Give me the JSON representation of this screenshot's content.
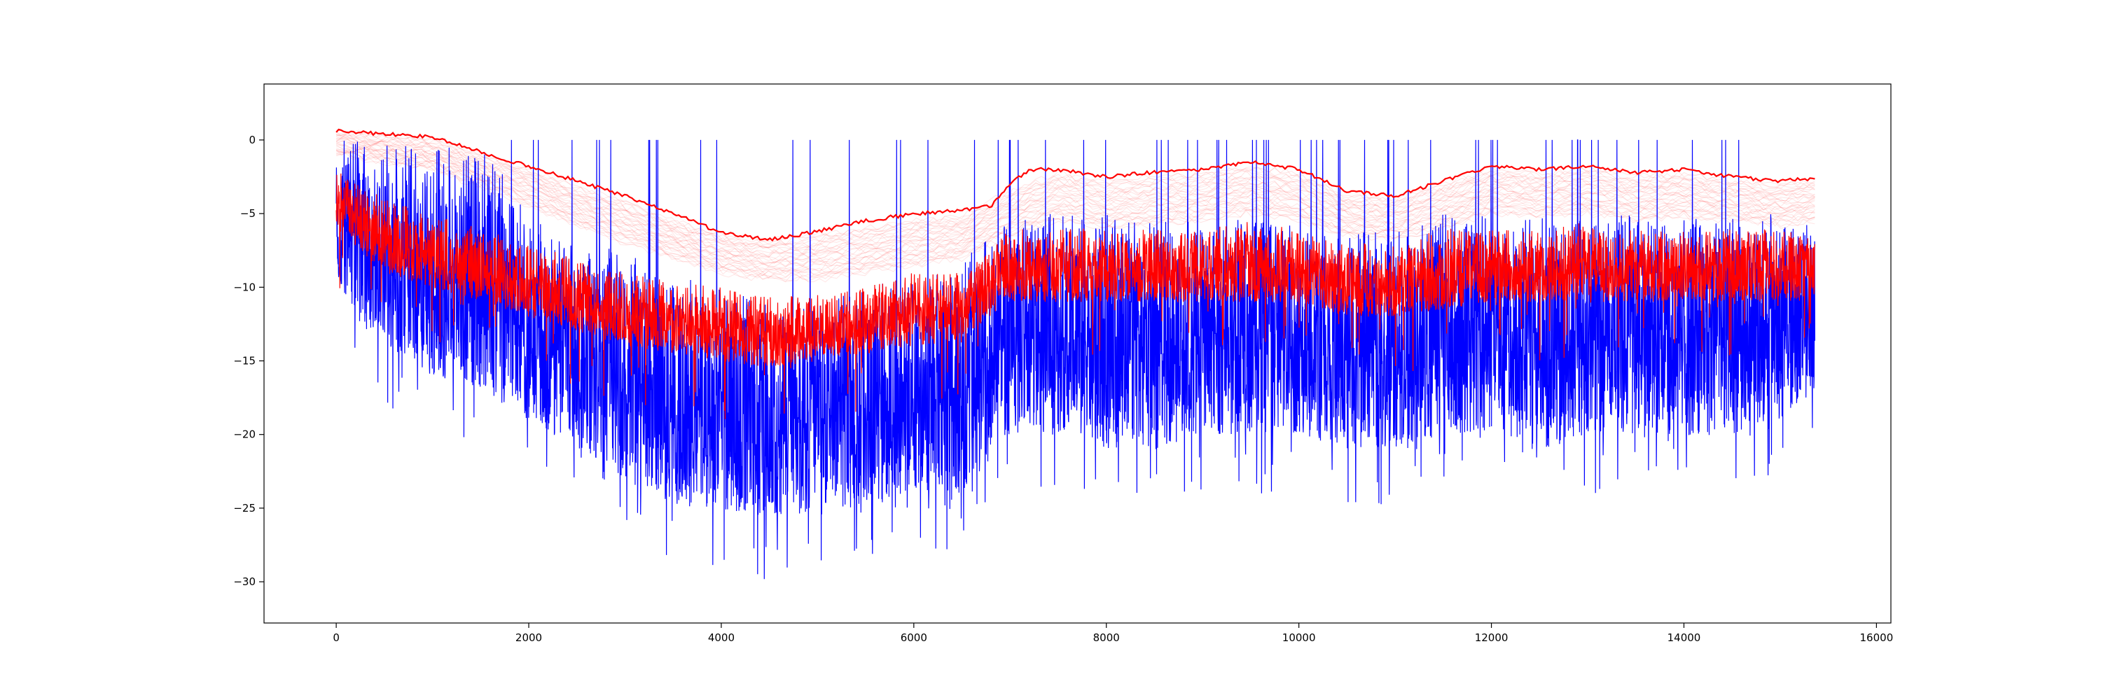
{
  "chart_data": {
    "type": "line",
    "title": "",
    "xlabel": "",
    "ylabel": "",
    "xlim": [
      -750,
      16150
    ],
    "ylim": [
      -32.8,
      3.8
    ],
    "x_ticks": [
      0,
      2000,
      4000,
      6000,
      8000,
      10000,
      12000,
      14000,
      16000
    ],
    "x_tick_labels": [
      "0",
      "2000",
      "4000",
      "6000",
      "8000",
      "10000",
      "12000",
      "14000",
      "16000"
    ],
    "y_ticks": [
      0,
      -5,
      -10,
      -15,
      -20,
      -25,
      -30
    ],
    "y_tick_labels": [
      "0",
      "−5",
      "−10",
      "−15",
      "−20",
      "−25",
      "−30"
    ],
    "grid": false,
    "legend": "none",
    "x_range_of_data": [
      0,
      15360
    ],
    "series": [
      {
        "color": "#0000ff",
        "style": "dense noisy spectrum, clipped at 0",
        "x": [
          0,
          500,
          1000,
          1500,
          2000,
          2500,
          3000,
          3500,
          4000,
          4500,
          5000,
          5500,
          6000,
          6500,
          7000,
          7500,
          8000,
          8500,
          9000,
          9500,
          10000,
          10500,
          11000,
          11500,
          12000,
          12500,
          13000,
          13500,
          14000,
          14500,
          15000,
          15360
        ],
        "upper": [
          0,
          0,
          0,
          0,
          -5,
          -7,
          -7.5,
          -9,
          -10,
          -11,
          -11,
          -10,
          -9,
          -8,
          -5,
          -5,
          -5,
          -5,
          -5,
          -5,
          -6,
          -6,
          -6,
          -5,
          -5,
          -5,
          -5,
          -5,
          -5,
          -5,
          -5,
          -6
        ],
        "lower": [
          -10,
          -14,
          -16,
          -17,
          -19,
          -21,
          -23,
          -25,
          -25,
          -26,
          -25,
          -25,
          -24,
          -24,
          -20,
          -20,
          -21,
          -21,
          -20,
          -20,
          -20,
          -21,
          -21,
          -20,
          -20,
          -21,
          -20,
          -20,
          -20,
          -20,
          -19,
          -17
        ]
      },
      {
        "color": "#ff0000",
        "style": "dense noisy spectrum",
        "x": [
          0,
          500,
          1000,
          1500,
          2000,
          2500,
          3000,
          3500,
          4000,
          4500,
          5000,
          5500,
          6000,
          6500,
          7000,
          7500,
          8000,
          8500,
          9000,
          9500,
          10000,
          10500,
          11000,
          11500,
          12000,
          12500,
          13000,
          13500,
          14000,
          14500,
          15000,
          15360
        ],
        "upper": [
          -2,
          -4,
          -5,
          -6,
          -7,
          -8,
          -9,
          -9.5,
          -10,
          -10.5,
          -10.5,
          -10,
          -9,
          -9,
          -6,
          -6,
          -6,
          -6,
          -6,
          -5.5,
          -6,
          -7,
          -7,
          -6,
          -6,
          -6,
          -5.5,
          -6,
          -6,
          -6,
          -6,
          -6.5
        ],
        "lower": [
          -6,
          -9,
          -10,
          -11,
          -12,
          -13,
          -14,
          -14.5,
          -15,
          -15.5,
          -15,
          -14.5,
          -14,
          -13.5,
          -11,
          -11,
          -11,
          -11,
          -11,
          -11,
          -11,
          -12,
          -12,
          -11.5,
          -11,
          -11,
          -11,
          -11,
          -11,
          -11,
          -11,
          -11
        ]
      },
      {
        "color": "#ff0000",
        "style": "smooth envelope (upper)",
        "x": [
          0,
          1000,
          1500,
          2000,
          2500,
          3000,
          3500,
          4000,
          4500,
          5000,
          5500,
          6000,
          6500,
          6800,
          7000,
          7200,
          7500,
          8000,
          8500,
          9000,
          9500,
          10000,
          10500,
          11000,
          11500,
          12000,
          12500,
          13000,
          13500,
          14000,
          14500,
          15000,
          15360
        ],
        "y": [
          0.6,
          0.2,
          -0.8,
          -1.8,
          -2.8,
          -3.8,
          -5.0,
          -6.3,
          -6.8,
          -6.2,
          -5.5,
          -5.0,
          -4.8,
          -4.5,
          -3.0,
          -2.0,
          -2.0,
          -2.5,
          -2.2,
          -2.0,
          -1.5,
          -2.0,
          -3.5,
          -3.8,
          -2.8,
          -1.8,
          -2.0,
          -1.8,
          -2.2,
          -2.0,
          -2.5,
          -2.8,
          -2.6
        ]
      },
      {
        "color": "#ff0000",
        "style": "bundle of faint smoothed traces",
        "x": [
          0,
          1000,
          1500,
          2000,
          2500,
          3000,
          3500,
          4000,
          4500,
          5000,
          5500,
          6000,
          6500,
          7000,
          7500,
          8000,
          8500,
          9000,
          9500,
          10000,
          10500,
          11000,
          11500,
          12000,
          12500,
          13000,
          13500,
          14000,
          14500,
          15000,
          15360
        ],
        "upper": [
          0.6,
          0.0,
          -1.0,
          -2.0,
          -3.2,
          -4.2,
          -5.5,
          -6.5,
          -6.8,
          -6.5,
          -6.0,
          -5.5,
          -5.2,
          -3.5,
          -2.3,
          -2.8,
          -2.5,
          -2.3,
          -1.8,
          -2.3,
          -3.8,
          -4.0,
          -3.0,
          -2.0,
          -2.3,
          -2.0,
          -2.5,
          -2.3,
          -2.8,
          -3.0,
          -2.8
        ],
        "lower": [
          -1.0,
          -2.0,
          -3.2,
          -4.5,
          -5.8,
          -7.0,
          -8.0,
          -9.0,
          -9.5,
          -9.5,
          -9.0,
          -8.5,
          -8.0,
          -6.5,
          -5.5,
          -6.0,
          -5.8,
          -5.5,
          -5.0,
          -5.5,
          -6.5,
          -6.8,
          -6.0,
          -5.0,
          -5.2,
          -5.0,
          -5.5,
          -5.2,
          -5.5,
          -5.8,
          -5.5
        ]
      }
    ]
  }
}
